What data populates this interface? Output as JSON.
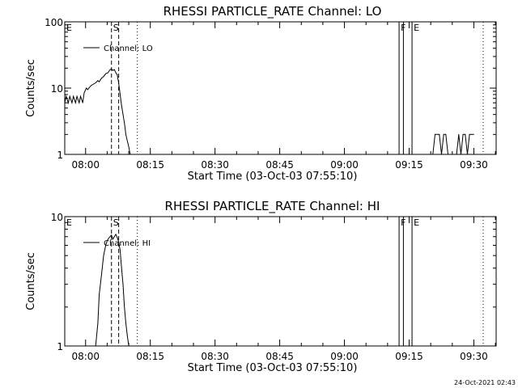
{
  "chart_data": [
    {
      "type": "line",
      "title": "RHESSI PARTICLE_RATE Channel: LO",
      "xlabel": "Start Time (03-Oct-03 07:55:10)",
      "ylabel": "Counts/sec",
      "yscale": "log",
      "ylim": [
        1,
        100
      ],
      "xlim": [
        "07:55:10",
        "09:35:10"
      ],
      "xticks": [
        "08:00",
        "08:15",
        "08:30",
        "08:45",
        "09:00",
        "09:15",
        "09:30"
      ],
      "yticks": [
        "1",
        "10",
        "100"
      ],
      "legend": {
        "label": "Channel: LO",
        "placement": "top-left"
      },
      "grid": false,
      "markers": [
        {
          "label": "E",
          "time": "07:55:10",
          "style": "none"
        },
        {
          "label": "S",
          "time": "08:06:00",
          "style": "dashed"
        },
        {
          "label": "",
          "time": "08:07:40",
          "style": "dashed"
        },
        {
          "label": "",
          "time": "08:12:00",
          "style": "dotted"
        },
        {
          "label": "F",
          "time": "09:12:40",
          "style": "solid"
        },
        {
          "label": "",
          "time": "09:13:40",
          "style": "solid"
        },
        {
          "label": "E",
          "time": "09:15:40",
          "style": "solid"
        },
        {
          "label": "",
          "time": "09:32:10",
          "style": "dotted"
        }
      ],
      "series": [
        {
          "name": "Channel: LO",
          "segments": [
            {
              "t": [
                "07:55:10",
                "07:55:30",
                "07:56:00",
                "07:56:20",
                "07:56:50",
                "07:57:10",
                "07:57:40",
                "07:58:00",
                "07:58:30",
                "07:58:50",
                "07:59:20",
                "07:59:40",
                "08:00:10",
                "08:00:30",
                "08:01:00",
                "08:01:20",
                "08:01:50",
                "08:02:20",
                "08:02:50",
                "08:03:10",
                "08:03:40",
                "08:04:10",
                "08:04:40",
                "08:05:10",
                "08:05:40",
                "08:06:00",
                "08:06:20",
                "08:06:40",
                "08:07:00",
                "08:07:20",
                "08:07:40",
                "08:08:00",
                "08:08:20",
                "08:08:40",
                "08:09:00",
                "08:09:20",
                "08:09:40",
                "08:10:00",
                "08:10:20",
                "08:10:40"
              ],
              "y": [
                6.0,
                7.5,
                6.0,
                7.5,
                6.0,
                7.5,
                6.0,
                7.5,
                6.0,
                7.5,
                6.0,
                8.5,
                10.0,
                9.5,
                10.5,
                11.0,
                11.5,
                12.0,
                13.0,
                12.5,
                14.0,
                15.0,
                16.5,
                17.0,
                19.0,
                19.5,
                18.5,
                19.0,
                17.0,
                16.0,
                12.0,
                8.0,
                5.5,
                4.0,
                3.0,
                2.0,
                1.6,
                1.3,
                1.0,
                1.0
              ]
            },
            {
              "t": [
                "09:20:30",
                "09:21:00",
                "09:21:30",
                "09:22:00",
                "09:22:30",
                "09:23:00",
                "09:23:30",
                "09:24:00",
                "09:24:30",
                "09:25:00",
                "09:25:30",
                "09:26:00",
                "09:26:30",
                "09:27:00",
                "09:27:30",
                "09:28:00",
                "09:28:30",
                "09:29:00",
                "09:29:30",
                "09:30:00"
              ],
              "y": [
                1,
                2,
                2,
                2,
                1,
                2,
                2,
                1,
                1,
                1,
                1,
                1,
                2,
                1,
                2,
                2,
                1,
                2,
                2,
                2
              ]
            }
          ]
        }
      ]
    },
    {
      "type": "line",
      "title": "RHESSI PARTICLE_RATE Channel: HI",
      "xlabel": "Start Time (03-Oct-03 07:55:10)",
      "ylabel": "Counts/sec",
      "yscale": "log",
      "ylim": [
        1,
        10
      ],
      "xlim": [
        "07:55:10",
        "09:35:10"
      ],
      "xticks": [
        "08:00",
        "08:15",
        "08:30",
        "08:45",
        "09:00",
        "09:15",
        "09:30"
      ],
      "yticks": [
        "1",
        "10"
      ],
      "legend": {
        "label": "Channel: HI",
        "placement": "top-left"
      },
      "grid": false,
      "markers": [
        {
          "label": "E",
          "time": "07:55:10",
          "style": "none"
        },
        {
          "label": "S",
          "time": "08:06:00",
          "style": "dashed"
        },
        {
          "label": "",
          "time": "08:07:40",
          "style": "dashed"
        },
        {
          "label": "",
          "time": "08:12:00",
          "style": "dotted"
        },
        {
          "label": "F",
          "time": "09:12:40",
          "style": "solid"
        },
        {
          "label": "",
          "time": "09:13:40",
          "style": "solid"
        },
        {
          "label": "E",
          "time": "09:15:40",
          "style": "solid"
        },
        {
          "label": "",
          "time": "09:32:10",
          "style": "dotted"
        }
      ],
      "series": [
        {
          "name": "Channel: HI",
          "segments": [
            {
              "t": [
                "08:02:20",
                "08:02:50",
                "08:03:10",
                "08:03:40",
                "08:04:10",
                "08:04:40",
                "08:05:00",
                "08:05:20",
                "08:05:40",
                "08:06:00",
                "08:06:20",
                "08:06:40",
                "08:07:00",
                "08:07:20",
                "08:07:40",
                "08:08:00",
                "08:08:20",
                "08:08:40",
                "08:09:00",
                "08:09:20",
                "08:09:40",
                "08:10:00"
              ],
              "y": [
                1.0,
                1.5,
                2.5,
                3.5,
                5.0,
                6.0,
                6.5,
                6.8,
                7.0,
                7.2,
                6.7,
                7.0,
                7.3,
                6.9,
                6.4,
                5.5,
                4.0,
                3.0,
                2.0,
                1.5,
                1.2,
                1.0
              ]
            }
          ]
        }
      ]
    }
  ],
  "footer": {
    "timestamp": "24-Oct-2021 02:43"
  }
}
